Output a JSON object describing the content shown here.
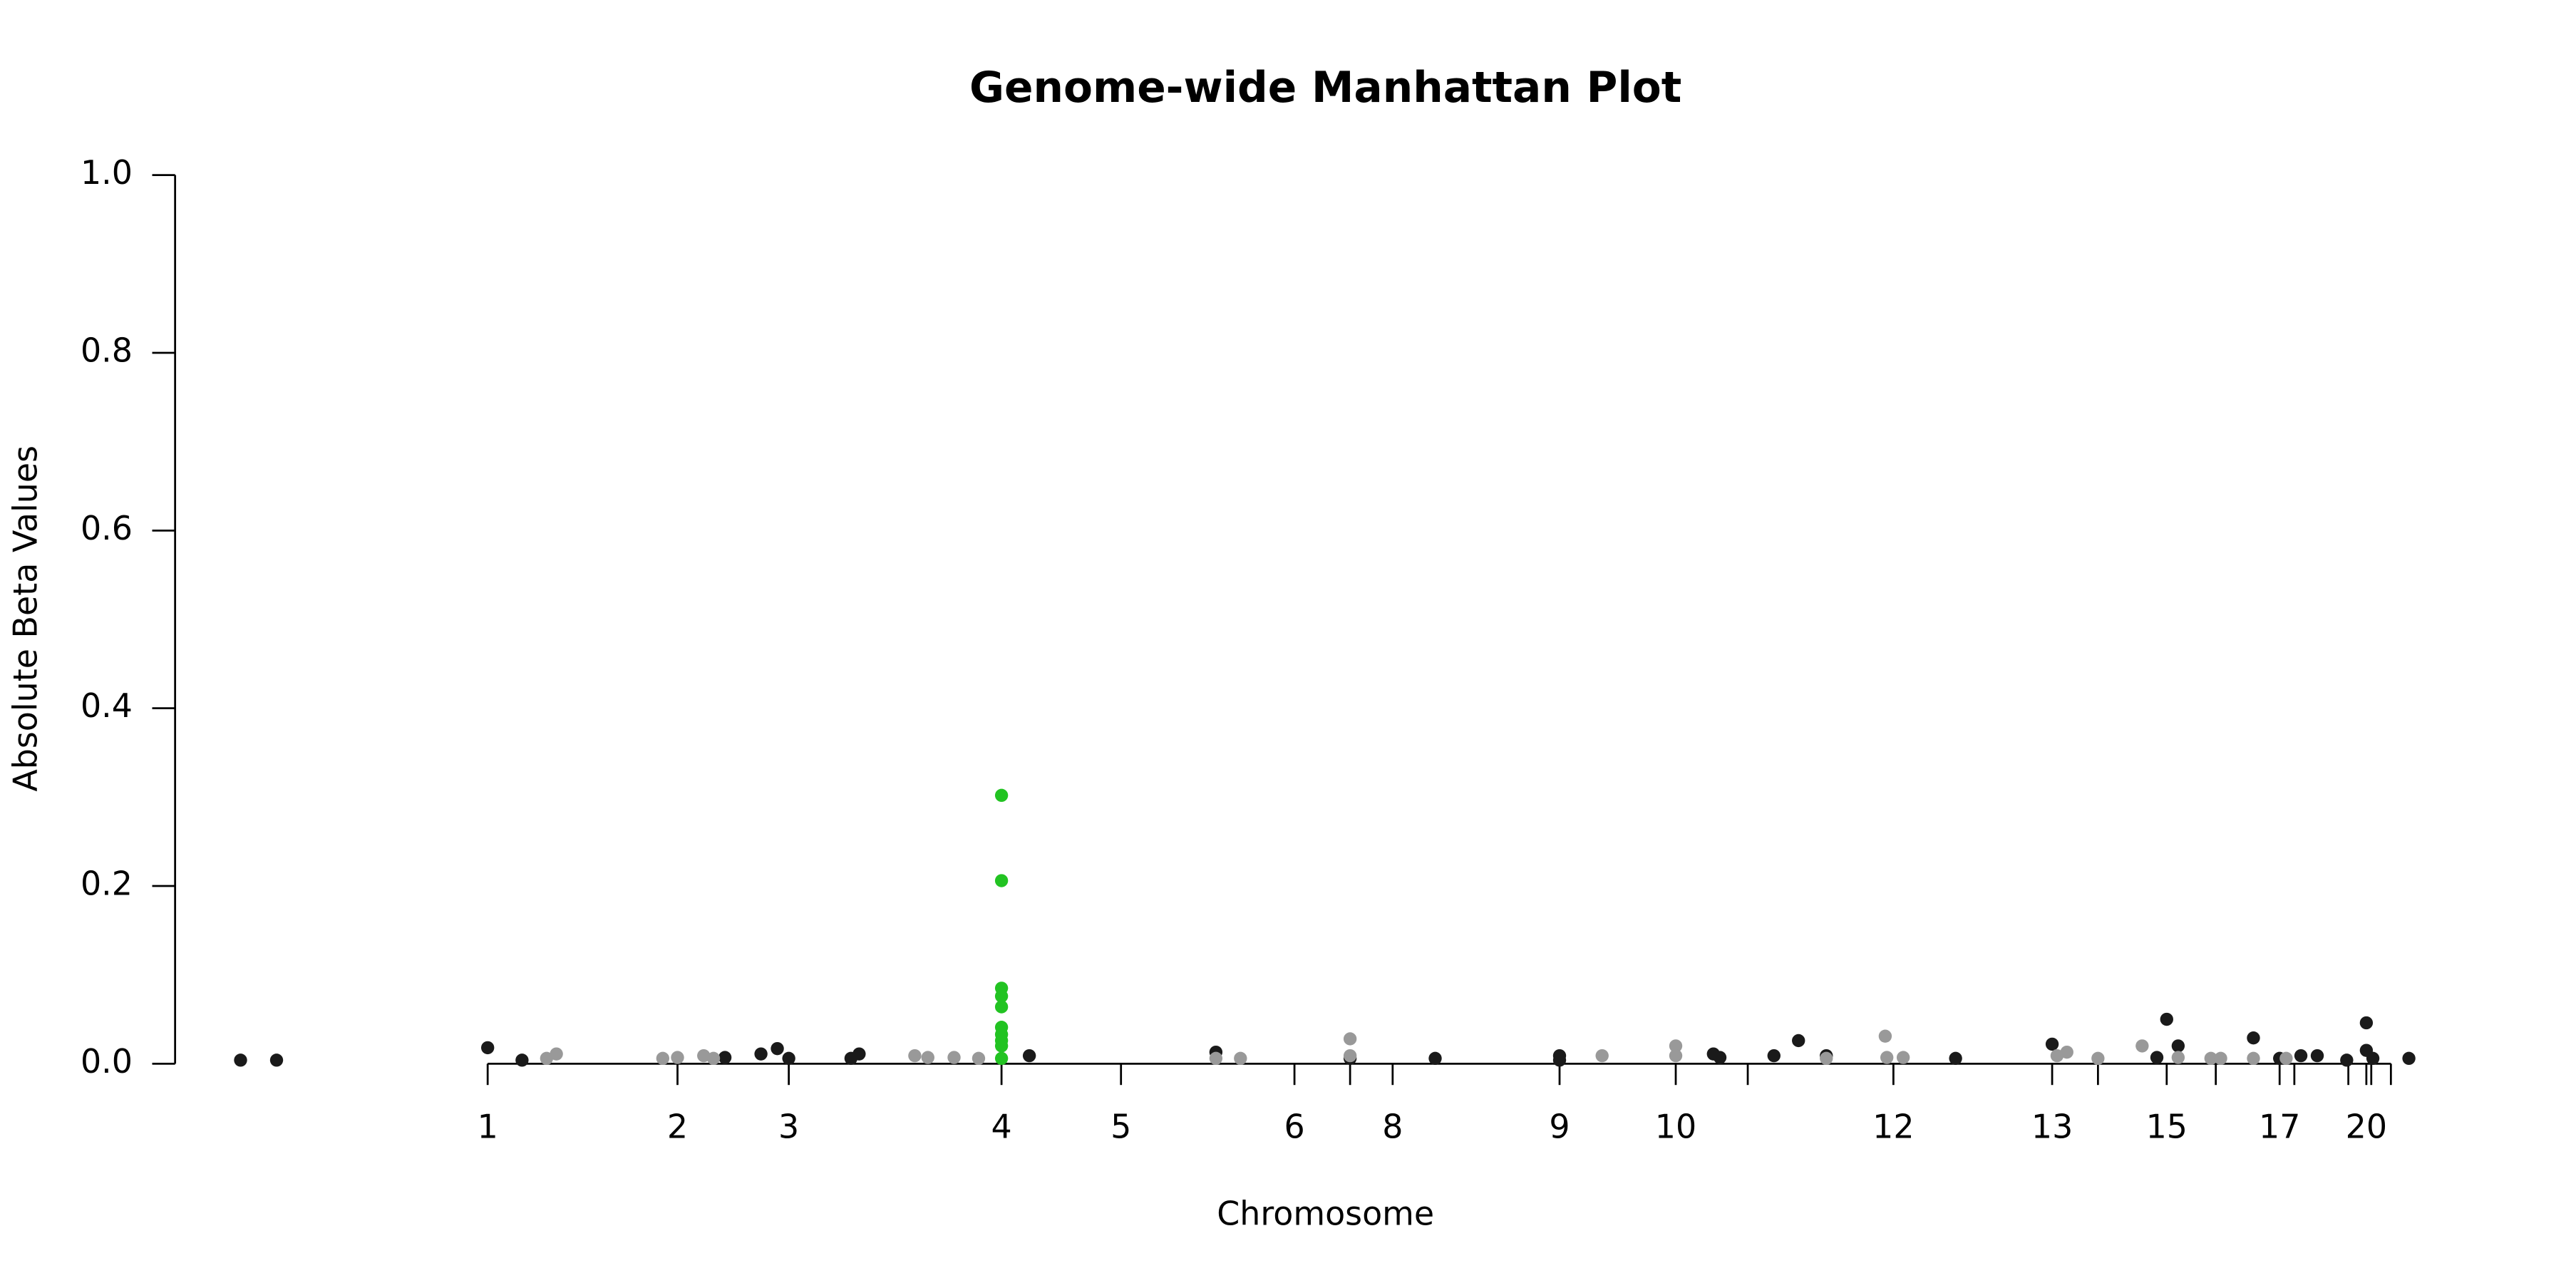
{
  "chart_data": {
    "type": "scatter",
    "title": "Genome-wide Manhattan Plot",
    "x_label": "Chromosome",
    "y_label": "Absolute Beta Values",
    "xlim": [
      107,
      1500
    ],
    "ylim": [
      0,
      1
    ],
    "yticks": [
      {
        "value": 0,
        "label": "0.0"
      },
      {
        "value": 0.2,
        "label": "0.2"
      },
      {
        "value": 0.4,
        "label": "0.4"
      },
      {
        "value": 0.6,
        "label": "0.6"
      },
      {
        "value": 0.8,
        "label": "0.8"
      },
      {
        "value": 1,
        "label": "1.0"
      }
    ],
    "xticks": [
      {
        "value": 298,
        "label": "1"
      },
      {
        "value": 414,
        "label": "2"
      },
      {
        "value": 482,
        "label": "3"
      },
      {
        "value": 612,
        "label": "4"
      },
      {
        "value": 685,
        "label": "5"
      },
      {
        "value": 791,
        "label": "6"
      },
      {
        "value": 825,
        "label": null
      },
      {
        "value": 851,
        "label": "8"
      },
      {
        "value": 953,
        "label": "9"
      },
      {
        "value": 1024,
        "label": "10"
      },
      {
        "value": 1068,
        "label": null
      },
      {
        "value": 1157,
        "label": "12"
      },
      {
        "value": 1254,
        "label": "13"
      },
      {
        "value": 1282,
        "label": null
      },
      {
        "value": 1324,
        "label": "15"
      },
      {
        "value": 1354,
        "label": null
      },
      {
        "value": 1393,
        "label": "17"
      },
      {
        "value": 1402,
        "label": null
      },
      {
        "value": 1435,
        "label": null
      },
      {
        "value": 1446,
        "label": "20"
      },
      {
        "value": 1449,
        "label": null
      },
      {
        "value": 1461,
        "label": null
      }
    ],
    "series": [
      {
        "color": "#1a1a1a",
        "x": [
          147,
          169,
          298,
          319,
          443,
          465,
          475,
          482,
          520,
          525,
          629,
          743,
          825,
          877,
          953,
          953,
          1047,
          1051,
          1084,
          1099,
          1116,
          1195,
          1254,
          1318,
          1324,
          1331,
          1377,
          1393,
          1406,
          1416,
          1434,
          1446,
          1446,
          1450,
          1472
        ],
        "values": [
          0.004,
          0.004,
          0.018,
          0.004,
          0.007,
          0.011,
          0.017,
          0.006,
          0.006,
          0.011,
          0.009,
          0.013,
          0.006,
          0.006,
          0.009,
          0.004,
          0.011,
          0.007,
          0.009,
          0.026,
          0.009,
          0.006,
          0.022,
          0.007,
          0.05,
          0.02,
          0.029,
          0.006,
          0.009,
          0.009,
          0.004,
          0.046,
          0.015,
          0.006,
          0.006
        ]
      },
      {
        "color": "#999999",
        "x": [
          334,
          340,
          405,
          414,
          430,
          436,
          559,
          567,
          583,
          598,
          743,
          758,
          825,
          825,
          979,
          1024,
          1024,
          1116,
          1152,
          1153,
          1163,
          1257,
          1263,
          1282,
          1309,
          1331,
          1351,
          1357,
          1377,
          1397
        ],
        "values": [
          0.006,
          0.011,
          0.006,
          0.007,
          0.009,
          0.006,
          0.009,
          0.007,
          0.007,
          0.006,
          0.006,
          0.006,
          0.028,
          0.009,
          0.009,
          0.02,
          0.009,
          0.006,
          0.031,
          0.007,
          0.007,
          0.009,
          0.013,
          0.006,
          0.02,
          0.007,
          0.006,
          0.006,
          0.006,
          0.006
        ]
      },
      {
        "color": "#22c322",
        "x": [
          612,
          612,
          612,
          612,
          612,
          612,
          612,
          612,
          612,
          612
        ],
        "values": [
          0.302,
          0.206,
          0.085,
          0.076,
          0.064,
          0.041,
          0.033,
          0.026,
          0.02,
          0.006
        ]
      }
    ]
  }
}
